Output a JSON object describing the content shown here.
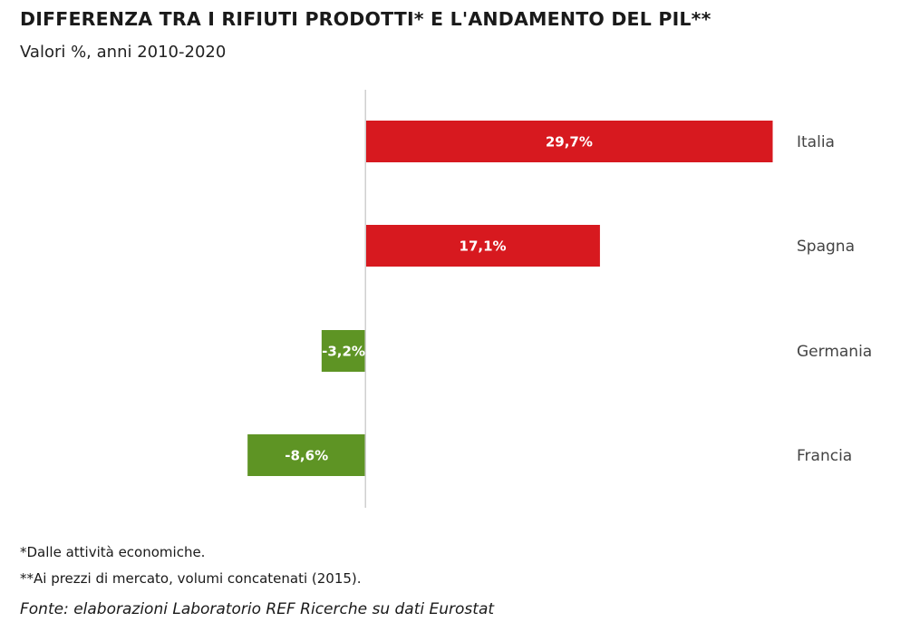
{
  "title": "DIFFERENZA TRA I RIFIUTI PRODOTTI* E L'ANDAMENTO DEL PIL**",
  "subtitle": "Valori %, anni 2010-2020",
  "notes": [
    "*Dalle attività economiche.",
    "**Ai prezzi di mercato, volumi concatenati (2015)."
  ],
  "source": "Fonte: elaborazioni Laboratorio REF Ricerche su dati Eurostat",
  "colors": {
    "positive": "#d7191f",
    "negative": "#5e9424",
    "axis": "#cfcfcf",
    "category_text": "#444444",
    "label_text": "#ffffff"
  },
  "chart_data": {
    "type": "bar",
    "orientation": "horizontal",
    "categories": [
      "Italia",
      "Spagna",
      "Germania",
      "Francia"
    ],
    "values": [
      29.7,
      17.1,
      -3.2,
      -8.6
    ],
    "value_labels": [
      "29,7%",
      "17,1%",
      "-3,2%",
      "-8,6%"
    ],
    "title": "DIFFERENZA TRA I RIFIUTI PRODOTTI* E L'ANDAMENTO DEL PIL**",
    "subtitle": "Valori %, anni 2010-2020",
    "xlim": [
      -17.6,
      33.5
    ],
    "grid": false,
    "legend": "none",
    "category_labels_position": "right"
  }
}
